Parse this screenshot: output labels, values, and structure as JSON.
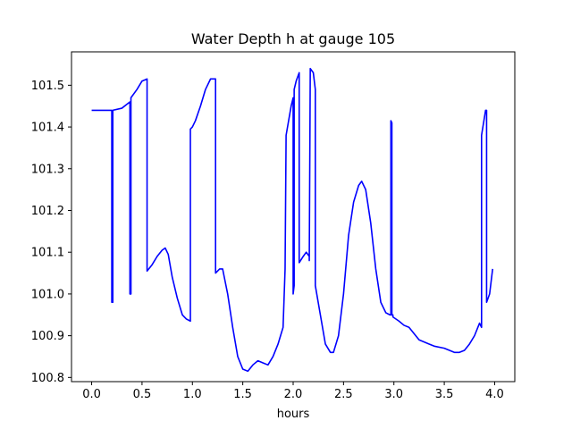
{
  "chart_data": {
    "type": "line",
    "title": "Water Depth h at gauge 105",
    "xlabel": "hours",
    "ylabel": "",
    "xlim": [
      -0.2,
      4.2
    ],
    "ylim": [
      100.79,
      101.58
    ],
    "xticks": [
      0.0,
      0.5,
      1.0,
      1.5,
      2.0,
      2.5,
      3.0,
      3.5,
      4.0
    ],
    "xtick_labels": [
      "0.0",
      "0.5",
      "1.0",
      "1.5",
      "2.0",
      "2.5",
      "3.0",
      "3.5",
      "4.0"
    ],
    "yticks": [
      100.8,
      100.9,
      101.0,
      101.1,
      101.2,
      101.3,
      101.4,
      101.5
    ],
    "ytick_labels": [
      "100.8",
      "100.9",
      "101.0",
      "101.1",
      "101.2",
      "101.3",
      "101.4",
      "101.5"
    ],
    "grid": false,
    "series": [
      {
        "name": "",
        "color": "#0000ff",
        "x": [
          0.0,
          0.1,
          0.2,
          0.2,
          0.21,
          0.21,
          0.3,
          0.38,
          0.38,
          0.39,
          0.39,
          0.45,
          0.5,
          0.55,
          0.55,
          0.6,
          0.65,
          0.7,
          0.73,
          0.76,
          0.8,
          0.85,
          0.9,
          0.94,
          0.98,
          0.98,
          1.0,
          1.03,
          1.08,
          1.13,
          1.18,
          1.23,
          1.23,
          1.27,
          1.3,
          1.35,
          1.4,
          1.45,
          1.5,
          1.55,
          1.6,
          1.65,
          1.7,
          1.75,
          1.8,
          1.85,
          1.9,
          1.92,
          1.93,
          1.98,
          2.0,
          2.0,
          2.01,
          2.01,
          2.03,
          2.06,
          2.06,
          2.1,
          2.13,
          2.16,
          2.16,
          2.17,
          2.2,
          2.22,
          2.22,
          2.27,
          2.32,
          2.37,
          2.4,
          2.45,
          2.5,
          2.55,
          2.6,
          2.65,
          2.68,
          2.72,
          2.77,
          2.82,
          2.87,
          2.92,
          2.96,
          2.97,
          2.97,
          2.98,
          2.98,
          2.99,
          2.99,
          3.05,
          3.1,
          3.15,
          3.2,
          3.25,
          3.3,
          3.35,
          3.4,
          3.5,
          3.6,
          3.65,
          3.7,
          3.75,
          3.8,
          3.85,
          3.87,
          3.87,
          3.91,
          3.92,
          3.92,
          3.95,
          3.98
        ],
        "y": [
          101.44,
          101.44,
          101.44,
          100.98,
          100.98,
          101.44,
          101.445,
          101.46,
          101.0,
          101.0,
          101.47,
          101.49,
          101.51,
          101.515,
          101.055,
          101.07,
          101.09,
          101.105,
          101.11,
          101.095,
          101.04,
          100.99,
          100.95,
          100.94,
          100.935,
          101.395,
          101.4,
          101.415,
          101.45,
          101.49,
          101.515,
          101.515,
          101.05,
          101.06,
          101.06,
          101.0,
          100.92,
          100.85,
          100.82,
          100.815,
          100.83,
          100.84,
          100.835,
          100.83,
          100.85,
          100.88,
          100.92,
          101.06,
          101.38,
          101.45,
          101.47,
          101.0,
          101.02,
          101.49,
          101.51,
          101.53,
          101.075,
          101.09,
          101.1,
          101.09,
          101.08,
          101.54,
          101.53,
          101.49,
          101.02,
          100.95,
          100.88,
          100.86,
          100.86,
          100.9,
          101.0,
          101.14,
          101.22,
          101.26,
          101.27,
          101.25,
          101.17,
          101.06,
          100.98,
          100.955,
          100.95,
          100.95,
          101.415,
          101.41,
          100.95,
          100.95,
          100.945,
          100.935,
          100.925,
          100.92,
          100.905,
          100.89,
          100.885,
          100.88,
          100.875,
          100.87,
          100.86,
          100.86,
          100.865,
          100.88,
          100.9,
          100.93,
          100.92,
          101.38,
          101.44,
          101.44,
          100.98,
          101.0,
          101.06
        ]
      }
    ]
  }
}
